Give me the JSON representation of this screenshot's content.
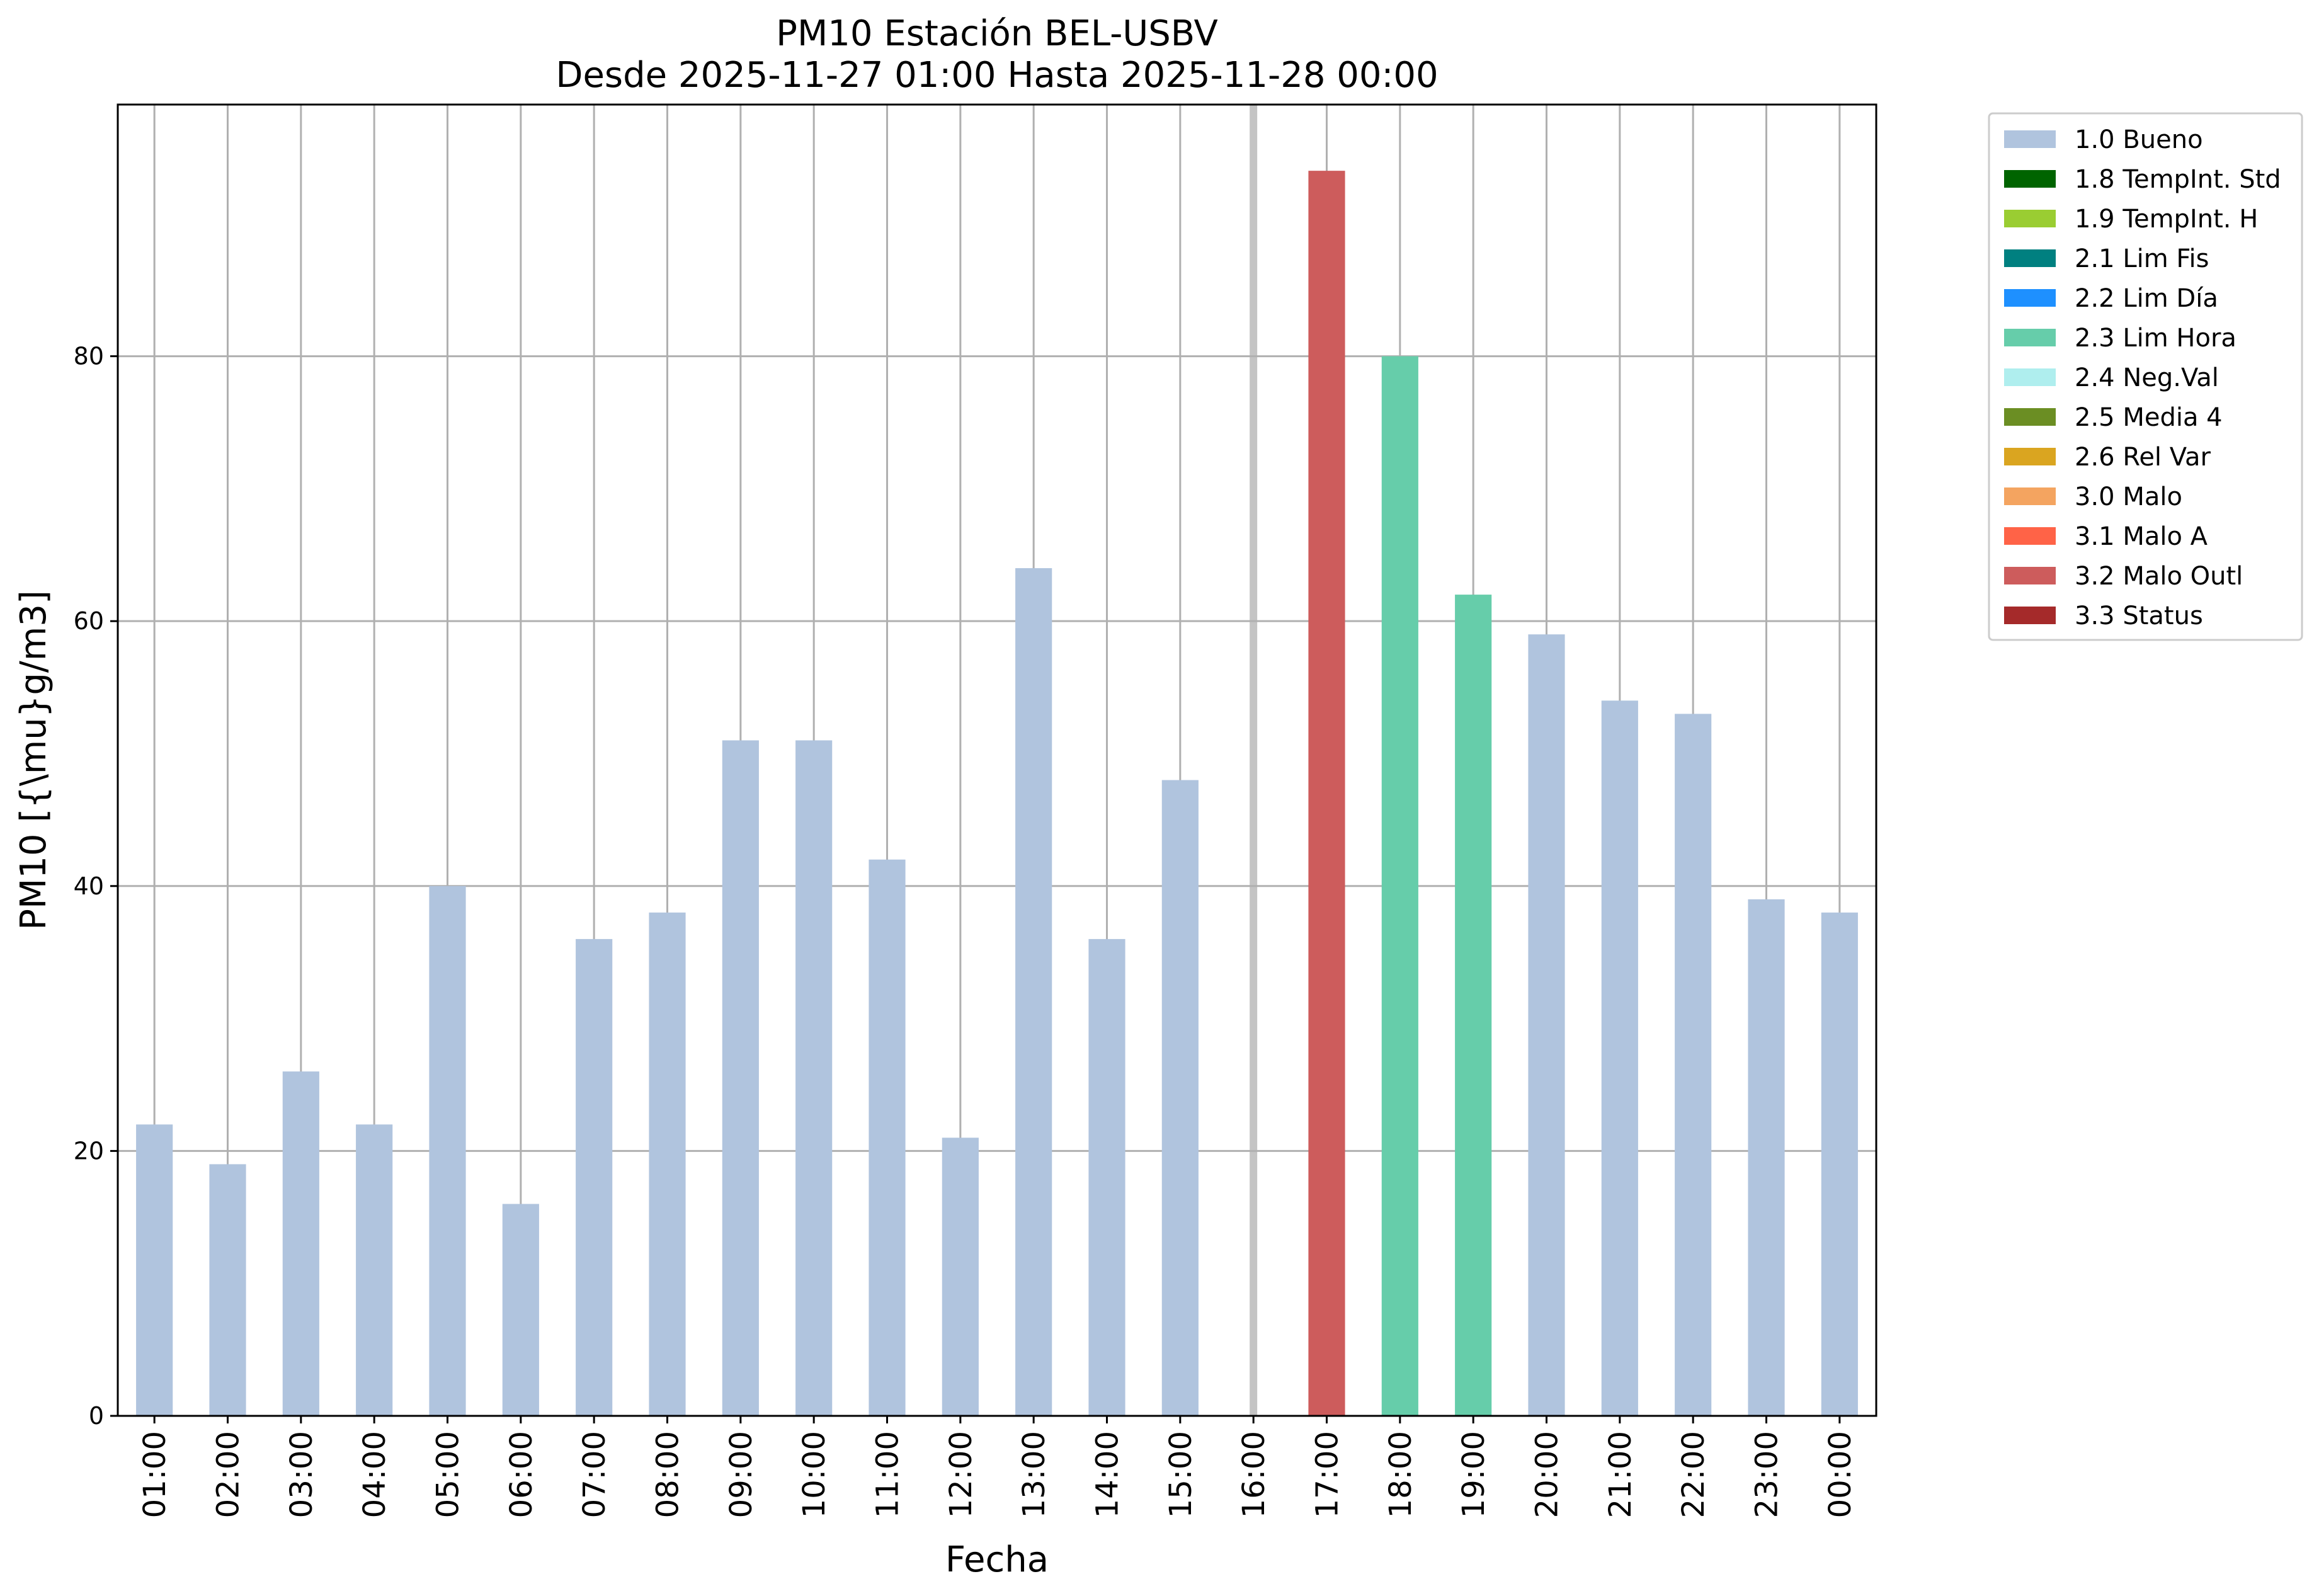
{
  "chart_data": {
    "type": "bar",
    "title": "PM10 Estación BEL-USBV",
    "subtitle": "Desde 2025-11-27 01:00 Hasta 2025-11-28 00:00",
    "xlabel": "Fecha",
    "ylabel": "PM10 [{\\mu}g/m3]",
    "ylim": [
      0,
      99
    ],
    "yticks": [
      0,
      20,
      40,
      60,
      80
    ],
    "grid": true,
    "legend_position": "outside top-right",
    "categories": [
      "01:00",
      "02:00",
      "03:00",
      "04:00",
      "05:00",
      "06:00",
      "07:00",
      "08:00",
      "09:00",
      "10:00",
      "11:00",
      "12:00",
      "13:00",
      "14:00",
      "15:00",
      "16:00",
      "17:00",
      "18:00",
      "19:00",
      "20:00",
      "21:00",
      "22:00",
      "23:00",
      "00:00"
    ],
    "values": [
      22,
      19,
      26,
      22,
      40,
      16,
      36,
      38,
      51,
      51,
      42,
      21,
      64,
      36,
      48,
      null,
      94,
      80,
      62,
      59,
      54,
      53,
      39,
      38
    ],
    "flags": [
      "1.0 Bueno",
      "1.0 Bueno",
      "1.0 Bueno",
      "1.0 Bueno",
      "1.0 Bueno",
      "1.0 Bueno",
      "1.0 Bueno",
      "1.0 Bueno",
      "1.0 Bueno",
      "1.0 Bueno",
      "1.0 Bueno",
      "1.0 Bueno",
      "1.0 Bueno",
      "1.0 Bueno",
      "1.0 Bueno",
      null,
      "3.2 Malo Outl",
      "2.3 Lim Hora",
      "2.3 Lim Hora",
      "1.0 Bueno",
      "1.0 Bueno",
      "1.0 Bueno",
      "1.0 Bueno",
      "1.0 Bueno"
    ],
    "missing_marker_category": "16:00",
    "legend": [
      {
        "label": "1.0 Bueno",
        "color": "#b0c4de"
      },
      {
        "label": "1.8 TempInt. Std",
        "color": "#006400"
      },
      {
        "label": "1.9 TempInt. H",
        "color": "#9acd32"
      },
      {
        "label": "2.1 Lim Fis",
        "color": "#008080"
      },
      {
        "label": "2.2 Lim Día",
        "color": "#1e90ff"
      },
      {
        "label": "2.3 Lim Hora",
        "color": "#66cdaa"
      },
      {
        "label": "2.4 Neg.Val",
        "color": "#afeeee"
      },
      {
        "label": "2.5 Media 4",
        "color": "#6b8e23"
      },
      {
        "label": "2.6 Rel Var",
        "color": "#daa520"
      },
      {
        "label": "3.0 Malo",
        "color": "#f4a460"
      },
      {
        "label": "3.1 Malo A",
        "color": "#ff6347"
      },
      {
        "label": "3.2 Malo Outl",
        "color": "#cd5c5c"
      },
      {
        "label": "3.3 Status",
        "color": "#a52a2a"
      }
    ]
  }
}
